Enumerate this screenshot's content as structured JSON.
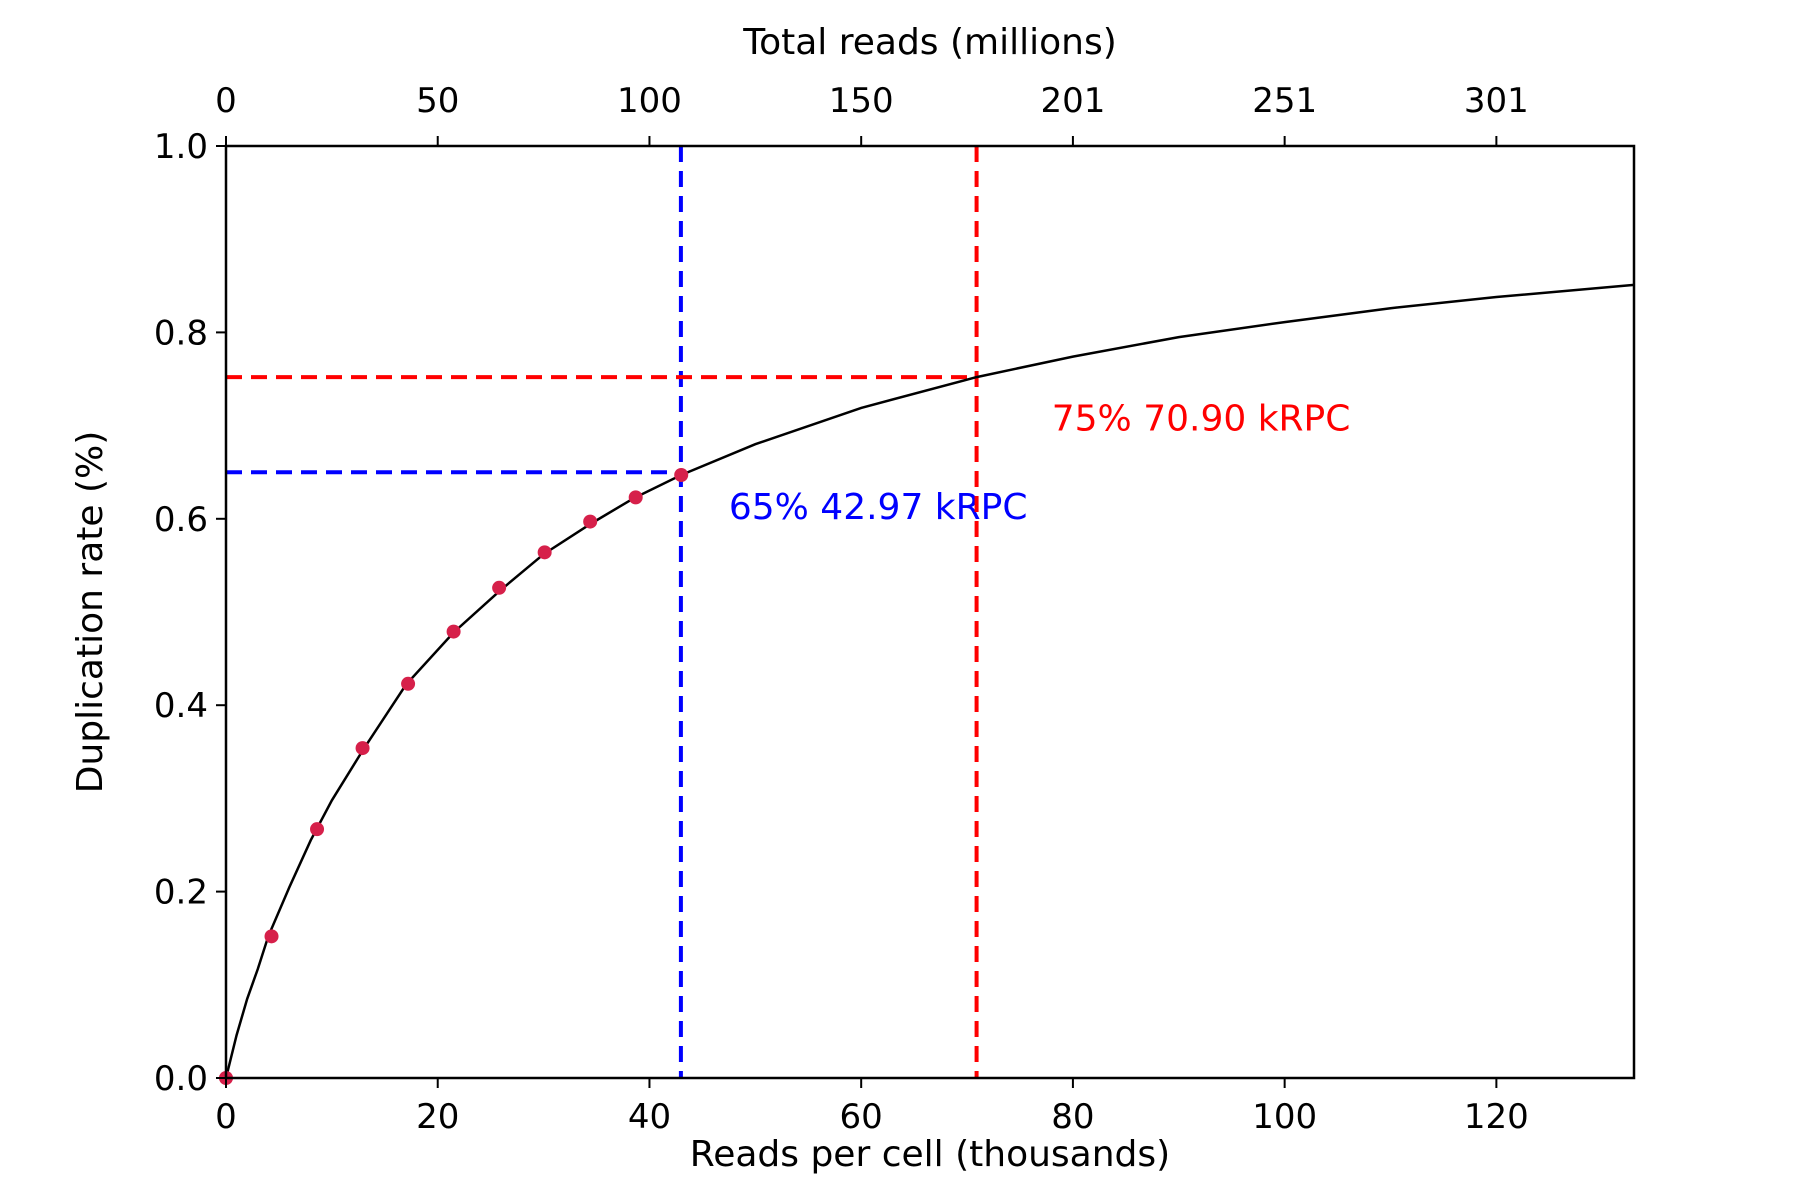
{
  "chart_data": {
    "type": "line",
    "xlabel": "Reads per cell (thousands)",
    "ylabel": "Duplication rate (%)",
    "top_xlabel": "Total reads (millions)",
    "xlim": [
      0,
      133
    ],
    "ylim": [
      0,
      1.0
    ],
    "x_ticks": [
      0,
      20,
      40,
      60,
      80,
      100,
      120
    ],
    "y_ticks": [
      0.0,
      0.2,
      0.4,
      0.6,
      0.8,
      1.0
    ],
    "x_tick_labels": [
      "0",
      "20",
      "40",
      "60",
      "80",
      "100",
      "120"
    ],
    "y_tick_labels": [
      "0.0",
      "0.2",
      "0.4",
      "0.6",
      "0.8",
      "1.0"
    ],
    "top_ticks": [
      {
        "x": 0,
        "label": "0"
      },
      {
        "x": 20,
        "label": "50"
      },
      {
        "x": 40,
        "label": "100"
      },
      {
        "x": 60,
        "label": "150"
      },
      {
        "x": 80,
        "label": "201"
      },
      {
        "x": 100,
        "label": "251"
      },
      {
        "x": 120,
        "label": "301"
      }
    ],
    "fit_curve": {
      "name": "fit",
      "color": "#000000",
      "x": [
        0,
        1,
        2,
        3,
        4,
        6,
        8,
        10,
        13,
        17,
        21.5,
        26,
        30,
        34.5,
        38.5,
        43,
        50,
        60,
        70.9,
        80,
        90,
        100,
        110,
        120,
        133
      ],
      "y": [
        0.0,
        0.046,
        0.085,
        0.117,
        0.152,
        0.205,
        0.255,
        0.298,
        0.353,
        0.422,
        0.478,
        0.524,
        0.562,
        0.595,
        0.622,
        0.647,
        0.68,
        0.719,
        0.752,
        0.774,
        0.795,
        0.811,
        0.826,
        0.838,
        0.851
      ]
    },
    "observed_points": {
      "name": "observed",
      "color": "#d6204a",
      "x": [
        0,
        4.3,
        8.6,
        12.9,
        17.2,
        21.5,
        25.8,
        30.1,
        34.4,
        38.7,
        43.0
      ],
      "y": [
        0.0,
        0.152,
        0.267,
        0.354,
        0.423,
        0.479,
        0.526,
        0.564,
        0.597,
        0.623,
        0.647
      ]
    },
    "reference_lines": [
      {
        "x": 42.97,
        "y": 0.65,
        "color": "#0000ff",
        "label": "65% 42.97 kRPC",
        "label_x": 47.5,
        "label_y": 0.6
      },
      {
        "x": 70.9,
        "y": 0.752,
        "color": "#ff0000",
        "label": "75% 70.90 kRPC",
        "label_x": 78,
        "label_y": 0.695
      }
    ],
    "grid": false,
    "legend": "none"
  }
}
